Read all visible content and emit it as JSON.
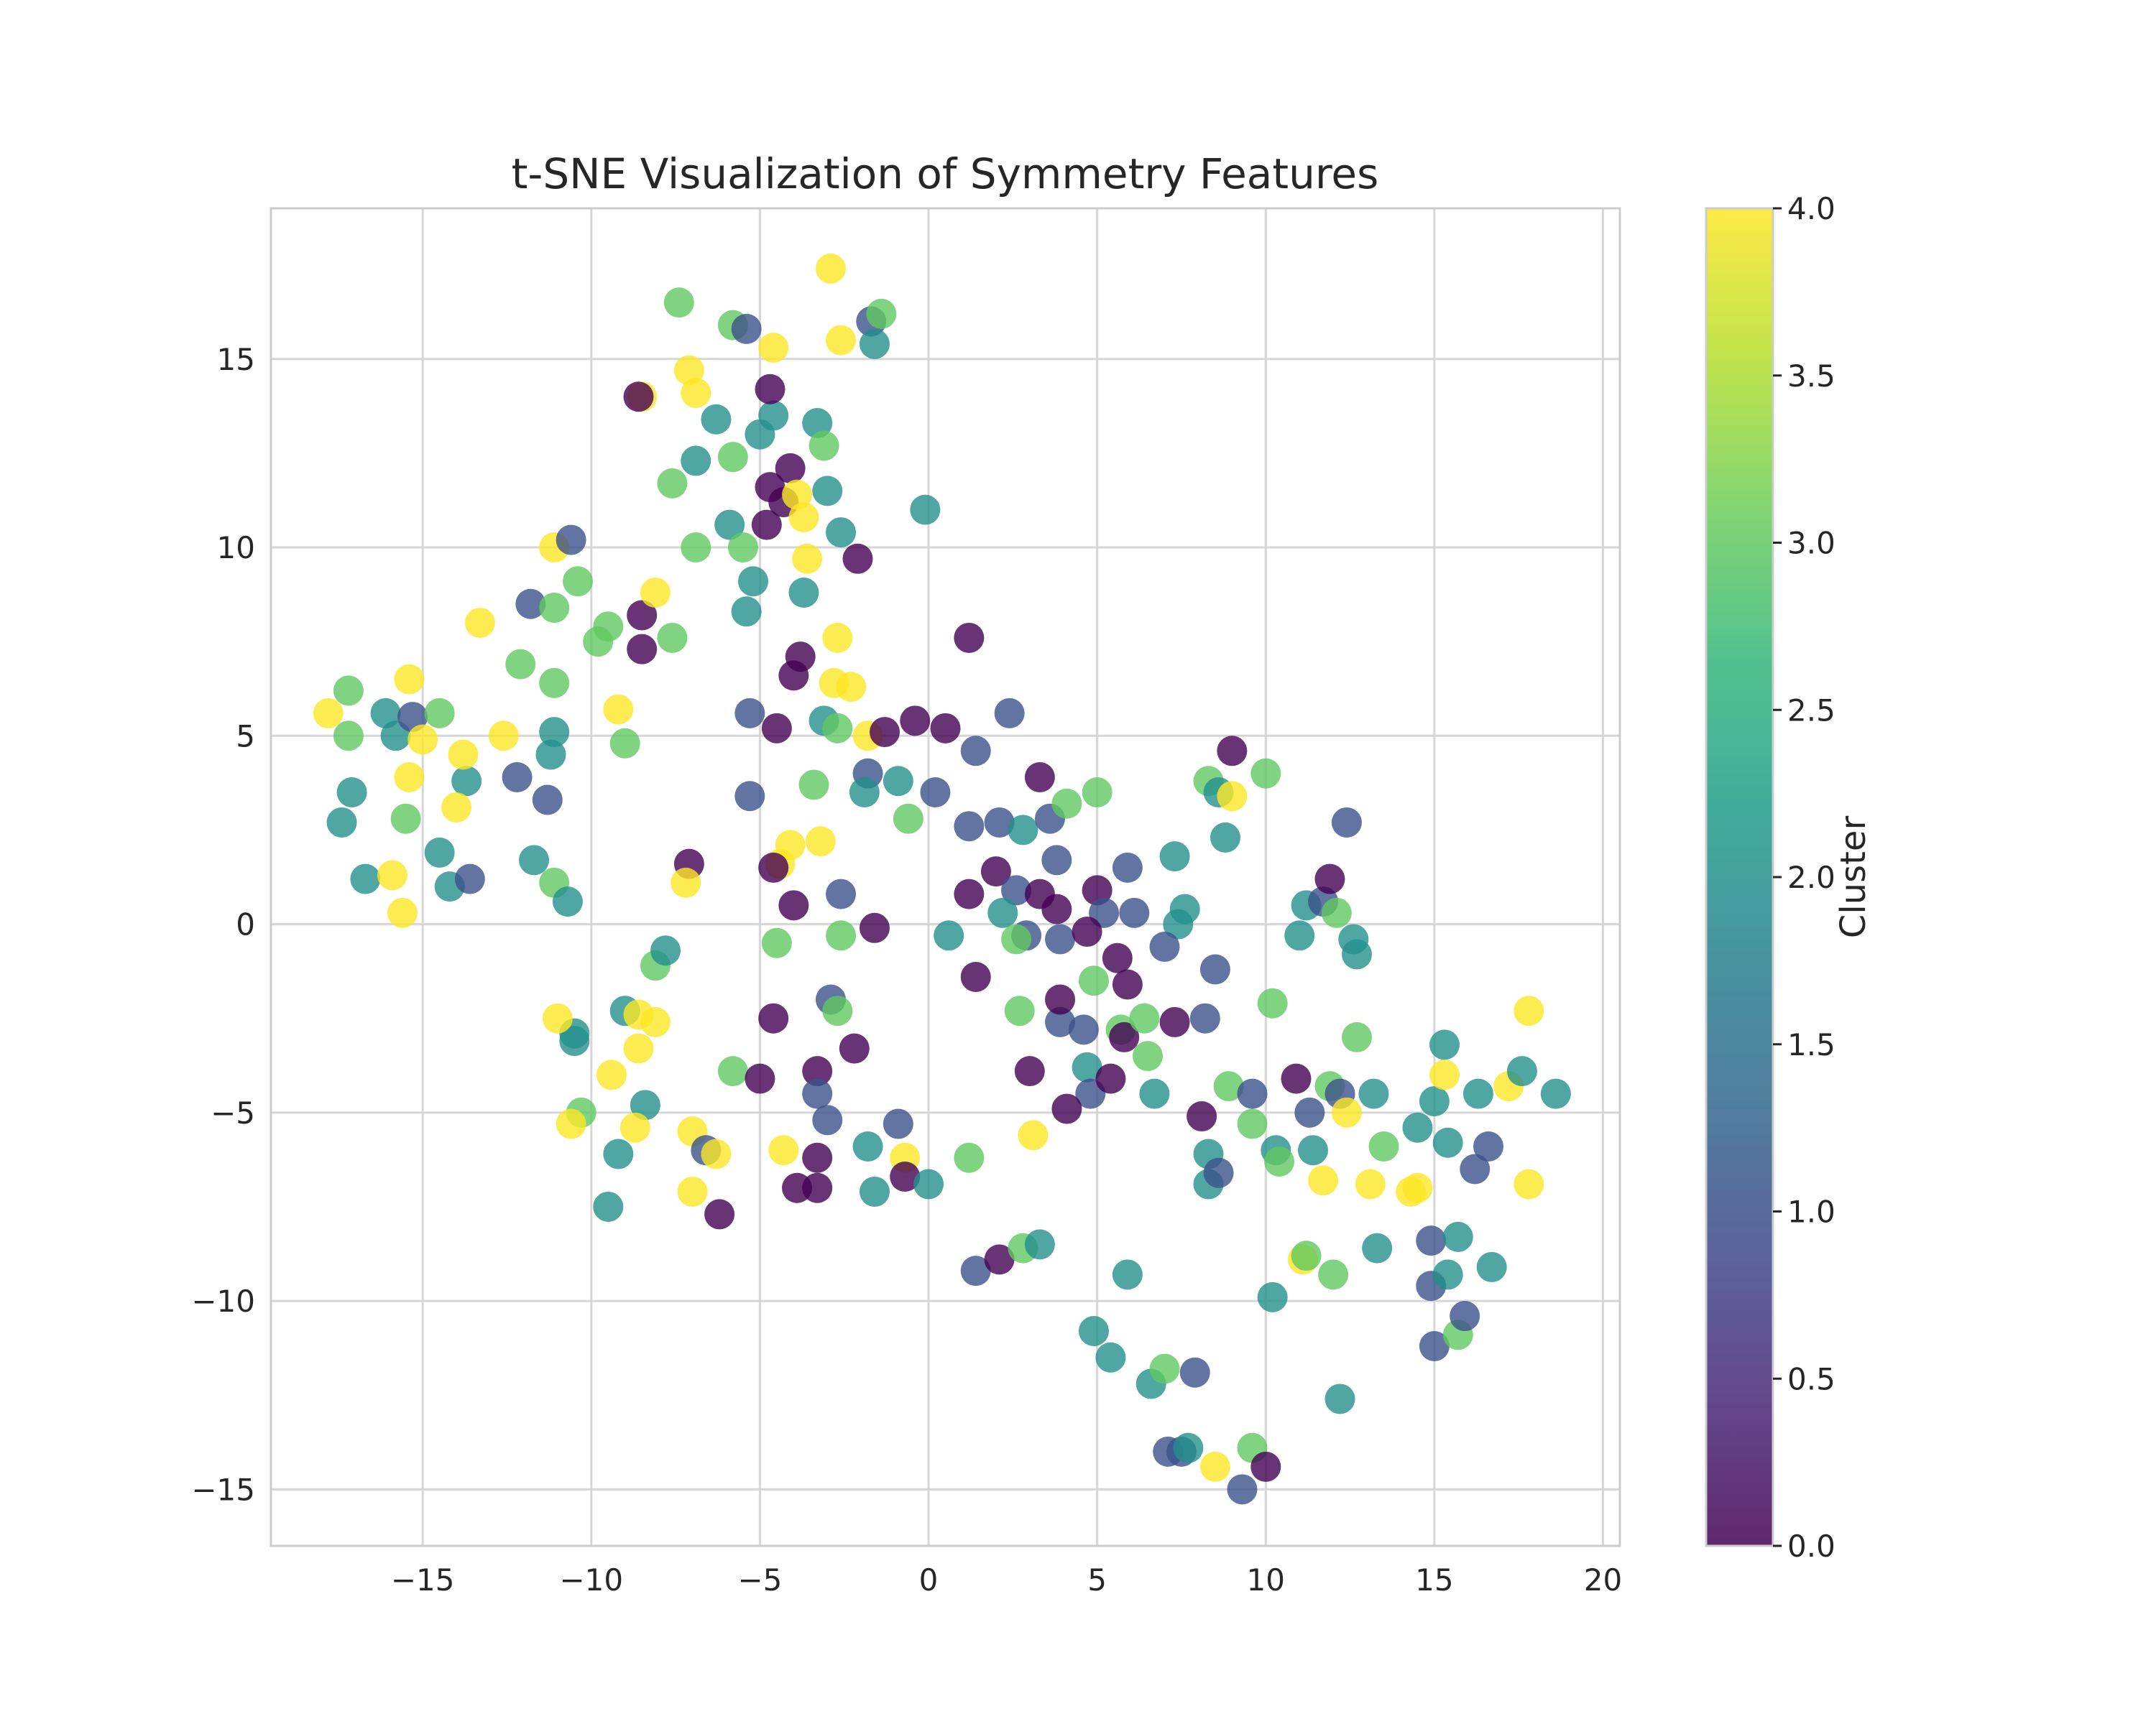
{
  "chart_data": {
    "type": "scatter",
    "title": "t-SNE Visualization of Symmetry Features",
    "xlabel": "",
    "ylabel": "",
    "xlim": [
      -19.5,
      20.5
    ],
    "ylim": [
      -16.5,
      19
    ],
    "xticks": [
      -15,
      -10,
      -5,
      0,
      5,
      10,
      15,
      20
    ],
    "yticks": [
      -15,
      -10,
      -5,
      0,
      5,
      10,
      15
    ],
    "xtick_labels": [
      "−15",
      "−10",
      "−5",
      "0",
      "5",
      "10",
      "15",
      "20"
    ],
    "ytick_labels": [
      "−15",
      "−10",
      "−5",
      "0",
      "5",
      "10",
      "15"
    ],
    "grid": true,
    "colormap": "viridis",
    "colorbar": {
      "label": "Cluster",
      "range": [
        0.0,
        4.0
      ],
      "ticks": [
        "0.0",
        "0.5",
        "1.0",
        "1.5",
        "2.0",
        "2.5",
        "3.0",
        "3.5",
        "4.0"
      ]
    },
    "points": [
      [
        -17.8,
        5.6,
        4
      ],
      [
        -17.2,
        6.2,
        3
      ],
      [
        -17.2,
        5.0,
        3
      ],
      [
        -17.1,
        3.5,
        2
      ],
      [
        -17.4,
        2.7,
        2
      ],
      [
        -16.7,
        1.2,
        2
      ],
      [
        -16.1,
        5.6,
        2
      ],
      [
        -15.8,
        5.0,
        2
      ],
      [
        -15.3,
        5.5,
        1
      ],
      [
        -15.4,
        6.5,
        4
      ],
      [
        -15.4,
        3.9,
        4
      ],
      [
        -15.5,
        2.8,
        3
      ],
      [
        -15.9,
        1.3,
        4
      ],
      [
        -15.6,
        0.3,
        4
      ],
      [
        -15.0,
        4.9,
        4
      ],
      [
        -14.5,
        5.6,
        3
      ],
      [
        -14.5,
        1.9,
        2
      ],
      [
        -14.2,
        1.0,
        2
      ],
      [
        -13.7,
        3.8,
        2
      ],
      [
        -13.8,
        4.5,
        4
      ],
      [
        -13.6,
        1.2,
        1
      ],
      [
        -14.0,
        3.1,
        4
      ],
      [
        -13.3,
        8.0,
        4
      ],
      [
        -12.6,
        5.0,
        4
      ],
      [
        -12.2,
        3.9,
        1
      ],
      [
        -12.1,
        6.9,
        3
      ],
      [
        -11.8,
        8.5,
        1
      ],
      [
        -11.7,
        1.7,
        2
      ],
      [
        -11.3,
        3.3,
        1
      ],
      [
        -11.2,
        4.5,
        2
      ],
      [
        -11.1,
        5.1,
        2
      ],
      [
        -11.1,
        6.4,
        3
      ],
      [
        -11.1,
        8.4,
        3
      ],
      [
        -11.1,
        10.0,
        4
      ],
      [
        -10.6,
        10.2,
        1
      ],
      [
        -10.4,
        9.1,
        3
      ],
      [
        -11.1,
        1.1,
        3
      ],
      [
        -10.7,
        0.6,
        2
      ],
      [
        -9.8,
        7.5,
        3
      ],
      [
        -9.5,
        7.9,
        3
      ],
      [
        -9.2,
        5.7,
        4
      ],
      [
        -9.0,
        4.8,
        3
      ],
      [
        -8.5,
        8.2,
        0
      ],
      [
        -8.5,
        7.3,
        0
      ],
      [
        -8.1,
        8.8,
        4
      ],
      [
        -8.5,
        14.0,
        4
      ],
      [
        -8.6,
        14.0,
        0
      ],
      [
        -7.4,
        16.5,
        3
      ],
      [
        -7.6,
        11.7,
        3
      ],
      [
        -7.6,
        7.6,
        3
      ],
      [
        -7.1,
        14.7,
        4
      ],
      [
        -6.9,
        14.1,
        4
      ],
      [
        -6.9,
        12.3,
        2
      ],
      [
        -6.9,
        10.0,
        3
      ],
      [
        -6.3,
        13.4,
        2
      ],
      [
        -5.9,
        10.6,
        2
      ],
      [
        -5.8,
        12.4,
        3
      ],
      [
        -5.8,
        15.9,
        3
      ],
      [
        -5.4,
        15.8,
        1
      ],
      [
        -5.5,
        10.0,
        3
      ],
      [
        -5.2,
        9.1,
        2
      ],
      [
        -5.4,
        8.3,
        2
      ],
      [
        -5.0,
        13.0,
        2
      ],
      [
        -4.6,
        13.5,
        2
      ],
      [
        -4.7,
        14.2,
        0
      ],
      [
        -4.7,
        11.6,
        0
      ],
      [
        -4.8,
        10.6,
        0
      ],
      [
        -4.6,
        15.3,
        4
      ],
      [
        -4.3,
        11.2,
        0
      ],
      [
        -4.1,
        12.1,
        0
      ],
      [
        -3.9,
        11.4,
        4
      ],
      [
        -3.7,
        10.8,
        4
      ],
      [
        -3.6,
        9.7,
        4
      ],
      [
        -3.7,
        8.8,
        2
      ],
      [
        -3.3,
        13.3,
        2
      ],
      [
        -3.1,
        12.7,
        3
      ],
      [
        -3.0,
        11.5,
        2
      ],
      [
        -2.6,
        10.4,
        2
      ],
      [
        -2.9,
        17.4,
        4
      ],
      [
        -2.6,
        15.5,
        4
      ],
      [
        -1.7,
        16.0,
        1
      ],
      [
        -1.4,
        16.2,
        3
      ],
      [
        -1.6,
        15.4,
        2
      ],
      [
        -0.1,
        11.0,
        2
      ],
      [
        -2.1,
        9.7,
        0
      ],
      [
        -3.8,
        7.1,
        0
      ],
      [
        -4.0,
        6.6,
        0
      ],
      [
        -4.5,
        5.2,
        0
      ],
      [
        -5.3,
        5.6,
        1
      ],
      [
        -2.7,
        7.6,
        4
      ],
      [
        -2.8,
        6.4,
        4
      ],
      [
        -2.3,
        6.3,
        4
      ],
      [
        -3.1,
        5.4,
        2
      ],
      [
        -2.7,
        5.2,
        3
      ],
      [
        -1.8,
        5.0,
        4
      ],
      [
        -1.3,
        5.1,
        0
      ],
      [
        -0.4,
        5.4,
        0
      ],
      [
        0.5,
        5.2,
        0
      ],
      [
        1.2,
        7.6,
        0
      ],
      [
        1.4,
        4.6,
        1
      ],
      [
        2.4,
        5.6,
        1
      ],
      [
        -1.8,
        4.0,
        1
      ],
      [
        -0.9,
        3.8,
        2
      ],
      [
        -1.9,
        3.5,
        2
      ],
      [
        -3.4,
        3.7,
        3
      ],
      [
        -5.3,
        3.4,
        1
      ],
      [
        -0.6,
        2.8,
        3
      ],
      [
        0.2,
        3.5,
        1
      ],
      [
        1.2,
        2.6,
        1
      ],
      [
        2.1,
        2.7,
        1
      ],
      [
        2.8,
        2.5,
        2
      ],
      [
        3.6,
        2.8,
        1
      ],
      [
        4.1,
        3.2,
        3
      ],
      [
        5.0,
        3.5,
        3
      ],
      [
        3.3,
        3.9,
        0
      ],
      [
        -4.1,
        2.1,
        4
      ],
      [
        -3.2,
        2.2,
        4
      ],
      [
        -4.4,
        1.6,
        4
      ],
      [
        -4.6,
        1.5,
        0
      ],
      [
        -2.6,
        0.8,
        1
      ],
      [
        -4.0,
        0.5,
        0
      ],
      [
        -7.1,
        1.6,
        0
      ],
      [
        -7.2,
        1.1,
        4
      ],
      [
        -1.6,
        -0.1,
        0
      ],
      [
        -2.6,
        -0.3,
        3
      ],
      [
        -4.5,
        -0.5,
        3
      ],
      [
        0.6,
        -0.3,
        2
      ],
      [
        1.2,
        0.8,
        0
      ],
      [
        2.0,
        1.4,
        0
      ],
      [
        2.6,
        0.9,
        1
      ],
      [
        3.3,
        0.8,
        0
      ],
      [
        3.8,
        0.4,
        0
      ],
      [
        3.8,
        1.7,
        1
      ],
      [
        5.0,
        0.9,
        0
      ],
      [
        5.2,
        0.3,
        1
      ],
      [
        5.9,
        1.5,
        1
      ],
      [
        6.1,
        0.3,
        1
      ],
      [
        7.3,
        1.8,
        2
      ],
      [
        7.6,
        0.4,
        2
      ],
      [
        7.4,
        0.0,
        2
      ],
      [
        2.2,
        0.3,
        2
      ],
      [
        2.9,
        -0.3,
        1
      ],
      [
        2.6,
        -0.4,
        3
      ],
      [
        3.9,
        -0.4,
        1
      ],
      [
        4.7,
        -0.2,
        0
      ],
      [
        5.6,
        -0.9,
        0
      ],
      [
        5.9,
        -1.6,
        0
      ],
      [
        4.9,
        -1.5,
        3
      ],
      [
        1.4,
        -1.4,
        0
      ],
      [
        7.0,
        -0.6,
        1
      ],
      [
        8.5,
        -1.2,
        1
      ],
      [
        8.3,
        3.8,
        3
      ],
      [
        8.6,
        3.5,
        2
      ],
      [
        9.0,
        3.4,
        4
      ],
      [
        9.0,
        4.6,
        0
      ],
      [
        10.0,
        4.0,
        3
      ],
      [
        8.8,
        2.3,
        2
      ],
      [
        11.0,
        -0.3,
        2
      ],
      [
        11.2,
        0.5,
        2
      ],
      [
        11.7,
        0.6,
        1
      ],
      [
        11.9,
        1.2,
        0
      ],
      [
        12.1,
        0.3,
        3
      ],
      [
        12.4,
        2.7,
        1
      ],
      [
        12.6,
        -0.4,
        2
      ],
      [
        12.7,
        -0.8,
        2
      ],
      [
        -8.1,
        -1.1,
        3
      ],
      [
        -7.8,
        -0.7,
        2
      ],
      [
        -9.0,
        -2.3,
        2
      ],
      [
        -8.1,
        -2.6,
        4
      ],
      [
        -8.6,
        -2.4,
        4
      ],
      [
        -8.6,
        -3.3,
        4
      ],
      [
        -10.5,
        -2.9,
        2
      ],
      [
        -10.5,
        -3.1,
        2
      ],
      [
        -11.0,
        -2.5,
        4
      ],
      [
        -9.4,
        -4.0,
        4
      ],
      [
        -8.4,
        -4.8,
        2
      ],
      [
        -8.7,
        -5.4,
        4
      ],
      [
        -10.3,
        -5.0,
        3
      ],
      [
        -10.6,
        -5.3,
        4
      ],
      [
        -9.2,
        -6.1,
        2
      ],
      [
        -9.5,
        -7.5,
        2
      ],
      [
        -7.0,
        -5.5,
        4
      ],
      [
        -6.6,
        -6.0,
        1
      ],
      [
        -6.3,
        -6.1,
        4
      ],
      [
        -7.0,
        -7.1,
        4
      ],
      [
        -6.2,
        -7.7,
        0
      ],
      [
        -5.8,
        -3.9,
        3
      ],
      [
        -5.0,
        -4.1,
        0
      ],
      [
        -4.6,
        -2.5,
        0
      ],
      [
        -3.3,
        -3.9,
        0
      ],
      [
        -3.3,
        -4.5,
        1
      ],
      [
        -3.0,
        -5.2,
        1
      ],
      [
        -2.9,
        -2.0,
        1
      ],
      [
        -2.7,
        -2.3,
        3
      ],
      [
        -2.2,
        -3.3,
        0
      ],
      [
        -4.3,
        -6.0,
        4
      ],
      [
        -3.9,
        -7.0,
        0
      ],
      [
        -3.3,
        -6.2,
        0
      ],
      [
        -3.3,
        -7.0,
        0
      ],
      [
        -1.8,
        -5.9,
        2
      ],
      [
        -1.6,
        -7.1,
        2
      ],
      [
        -0.9,
        -5.3,
        1
      ],
      [
        -0.7,
        -6.2,
        4
      ],
      [
        -0.7,
        -6.7,
        0
      ],
      [
        0.0,
        -6.9,
        2
      ],
      [
        1.2,
        -6.2,
        3
      ],
      [
        2.7,
        -2.3,
        3
      ],
      [
        3.9,
        -2.6,
        1
      ],
      [
        3.9,
        -2.0,
        0
      ],
      [
        4.6,
        -2.8,
        1
      ],
      [
        5.7,
        -2.8,
        3
      ],
      [
        5.8,
        -3.0,
        0
      ],
      [
        6.4,
        -2.5,
        3
      ],
      [
        6.5,
        -3.5,
        3
      ],
      [
        4.7,
        -3.8,
        2
      ],
      [
        3.0,
        -3.9,
        0
      ],
      [
        4.8,
        -4.5,
        1
      ],
      [
        4.1,
        -4.9,
        0
      ],
      [
        5.4,
        -4.1,
        0
      ],
      [
        6.7,
        -4.5,
        2
      ],
      [
        7.3,
        -2.6,
        0
      ],
      [
        8.2,
        -2.5,
        1
      ],
      [
        8.9,
        -4.3,
        3
      ],
      [
        9.6,
        -4.5,
        1
      ],
      [
        8.1,
        -5.1,
        0
      ],
      [
        9.6,
        -5.3,
        3
      ],
      [
        3.1,
        -5.6,
        4
      ],
      [
        8.3,
        -6.1,
        2
      ],
      [
        8.3,
        -6.9,
        2
      ],
      [
        8.6,
        -6.6,
        1
      ],
      [
        10.2,
        -2.1,
        3
      ],
      [
        10.9,
        -4.1,
        0
      ],
      [
        10.3,
        -6.0,
        2
      ],
      [
        10.4,
        -6.3,
        3
      ],
      [
        11.3,
        -5.0,
        1
      ],
      [
        11.4,
        -6.0,
        2
      ],
      [
        11.9,
        -4.3,
        3
      ],
      [
        12.2,
        -4.5,
        1
      ],
      [
        12.4,
        -5.0,
        4
      ],
      [
        12.7,
        -3.0,
        3
      ],
      [
        13.2,
        -4.5,
        2
      ],
      [
        11.7,
        -6.8,
        4
      ],
      [
        13.1,
        -6.9,
        4
      ],
      [
        13.5,
        -5.9,
        3
      ],
      [
        14.3,
        -7.1,
        4
      ],
      [
        14.5,
        -7.0,
        4
      ],
      [
        14.5,
        -5.4,
        2
      ],
      [
        15.0,
        -4.7,
        2
      ],
      [
        15.3,
        -4.0,
        4
      ],
      [
        15.3,
        -3.2,
        2
      ],
      [
        15.4,
        -5.8,
        2
      ],
      [
        16.3,
        -4.5,
        2
      ],
      [
        16.6,
        -5.9,
        1
      ],
      [
        16.2,
        -6.5,
        1
      ],
      [
        17.2,
        -4.3,
        4
      ],
      [
        17.6,
        -3.9,
        2
      ],
      [
        17.8,
        -2.3,
        4
      ],
      [
        17.8,
        -6.9,
        4
      ],
      [
        18.6,
        -4.5,
        2
      ],
      [
        1.4,
        -9.2,
        1
      ],
      [
        2.1,
        -8.9,
        0
      ],
      [
        2.8,
        -8.6,
        3
      ],
      [
        3.3,
        -8.5,
        2
      ],
      [
        5.9,
        -9.3,
        2
      ],
      [
        10.2,
        -9.9,
        2
      ],
      [
        11.1,
        -8.9,
        4
      ],
      [
        11.2,
        -8.8,
        3
      ],
      [
        12.0,
        -9.3,
        3
      ],
      [
        13.3,
        -8.6,
        2
      ],
      [
        14.9,
        -8.4,
        1
      ],
      [
        14.9,
        -9.6,
        1
      ],
      [
        15.4,
        -9.3,
        2
      ],
      [
        15.7,
        -8.3,
        2
      ],
      [
        16.7,
        -9.1,
        2
      ],
      [
        15.0,
        -11.2,
        1
      ],
      [
        15.7,
        -10.9,
        3
      ],
      [
        15.9,
        -10.4,
        1
      ],
      [
        12.2,
        -12.6,
        2
      ],
      [
        4.9,
        -10.8,
        2
      ],
      [
        5.4,
        -11.5,
        2
      ],
      [
        6.6,
        -12.2,
        2
      ],
      [
        7.0,
        -11.8,
        3
      ],
      [
        7.9,
        -11.9,
        1
      ],
      [
        7.1,
        -14.0,
        1
      ],
      [
        7.5,
        -14.0,
        1
      ],
      [
        7.7,
        -13.9,
        2
      ],
      [
        8.5,
        -14.4,
        4
      ],
      [
        9.3,
        -15.0,
        1
      ],
      [
        9.6,
        -13.9,
        3
      ],
      [
        10.0,
        -14.4,
        0
      ]
    ]
  }
}
